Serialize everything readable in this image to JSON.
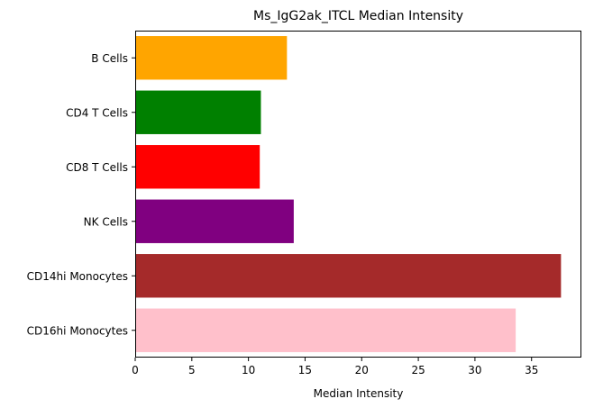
{
  "chart_data": {
    "type": "bar",
    "orientation": "horizontal",
    "title": "Ms_IgG2ak_ITCL Median Intensity",
    "xlabel": "Median Intensity",
    "ylabel": "",
    "xlim": [
      0,
      39.4
    ],
    "xticks": [
      0,
      5,
      10,
      15,
      20,
      25,
      30,
      35
    ],
    "categories": [
      "B Cells",
      "CD4 T Cells",
      "CD8 T Cells",
      "NK Cells",
      "CD14hi Monocytes",
      "CD16hi Monocytes"
    ],
    "values": [
      13.4,
      11.1,
      11.0,
      14.0,
      37.6,
      33.6
    ],
    "colors": [
      "#ffa500",
      "#008000",
      "#ff0000",
      "#800080",
      "#a52a2a",
      "#ffc0cb"
    ],
    "grid": false,
    "legend": "none"
  }
}
